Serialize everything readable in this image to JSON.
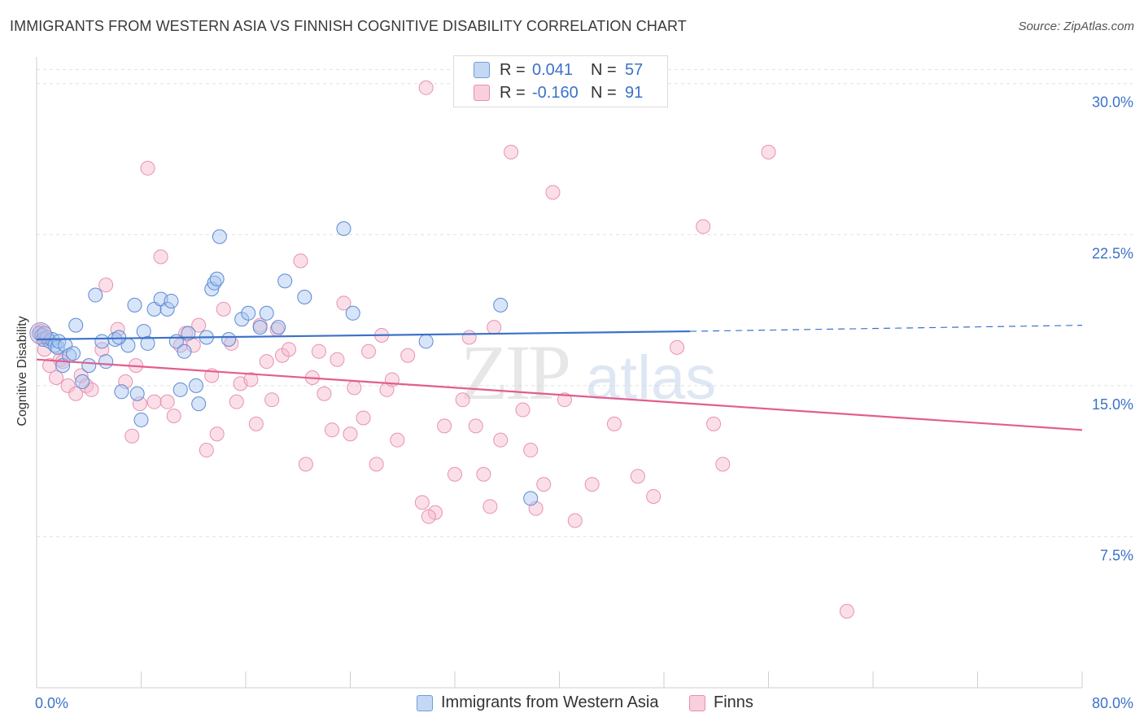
{
  "header": {
    "title": "IMMIGRANTS FROM WESTERN ASIA VS FINNISH COGNITIVE DISABILITY CORRELATION CHART",
    "source": "Source: ZipAtlas.com"
  },
  "colors": {
    "blue": "#3b72c8",
    "blue_fill": "#a9c6f0",
    "pink": "#e35d8e",
    "pink_fill": "#f6b9cd",
    "grid": "#e0e0e0",
    "tick_label": "#3b72c8"
  },
  "legend": {
    "rows": [
      {
        "r_label": "R =",
        "r_value": "0.041",
        "n_label": "N =",
        "n_value": "57"
      },
      {
        "r_label": "R =",
        "r_value": "-0.160",
        "n_label": "N =",
        "n_value": "91"
      }
    ],
    "series_names": [
      "Immigrants from Western Asia",
      "Finns"
    ]
  },
  "watermark": {
    "zip": "ZIP",
    "atlas": "atlas"
  },
  "chart_data": {
    "type": "scatter",
    "title": "IMMIGRANTS FROM WESTERN ASIA VS FINNISH COGNITIVE DISABILITY CORRELATION CHART",
    "xlabel": "",
    "ylabel": "Cognitive Disability",
    "xlim": [
      0,
      80
    ],
    "ylim": [
      0,
      31
    ],
    "x_tick_labels": [
      "0.0%",
      "80.0%"
    ],
    "y_ticks": [
      7.5,
      15.0,
      22.5,
      30.0
    ],
    "y_tick_labels": [
      "7.5%",
      "15.0%",
      "22.5%",
      "30.0%"
    ],
    "grid": true,
    "series": [
      {
        "name": "Immigrants from Western Asia",
        "r": 0.041,
        "n": 57,
        "trend": {
          "x_start": 0,
          "y_start": 17.3,
          "x_solid_end": 50,
          "y_solid_end": 17.7,
          "x_end": 80,
          "y_end": 18.0
        },
        "points": [
          [
            0.2,
            17.6
          ],
          [
            0.4,
            17.5
          ],
          [
            0.5,
            17.3
          ],
          [
            0.8,
            17.4
          ],
          [
            1.0,
            17.2
          ],
          [
            1.2,
            17.3
          ],
          [
            1.4,
            17.0
          ],
          [
            1.6,
            16.9
          ],
          [
            1.7,
            17.2
          ],
          [
            2.0,
            16.0
          ],
          [
            2.2,
            17.0
          ],
          [
            2.5,
            16.5
          ],
          [
            3.0,
            18.0
          ],
          [
            3.5,
            15.2
          ],
          [
            4.0,
            16.0
          ],
          [
            4.5,
            19.5
          ],
          [
            5.0,
            17.2
          ],
          [
            5.3,
            16.2
          ],
          [
            6.0,
            17.3
          ],
          [
            6.5,
            14.7
          ],
          [
            7.0,
            17.0
          ],
          [
            7.5,
            19.0
          ],
          [
            7.7,
            14.6
          ],
          [
            8.0,
            13.3
          ],
          [
            8.2,
            17.7
          ],
          [
            8.5,
            17.1
          ],
          [
            9.0,
            18.8
          ],
          [
            9.5,
            19.3
          ],
          [
            10.0,
            18.8
          ],
          [
            10.3,
            19.2
          ],
          [
            10.7,
            17.2
          ],
          [
            11.0,
            14.8
          ],
          [
            11.3,
            16.7
          ],
          [
            11.6,
            17.6
          ],
          [
            12.2,
            15.0
          ],
          [
            12.4,
            14.1
          ],
          [
            13.0,
            17.4
          ],
          [
            13.4,
            19.8
          ],
          [
            13.6,
            20.1
          ],
          [
            13.8,
            20.3
          ],
          [
            14.0,
            22.4
          ],
          [
            14.7,
            17.3
          ],
          [
            15.7,
            18.3
          ],
          [
            16.2,
            18.6
          ],
          [
            17.1,
            17.9
          ],
          [
            17.6,
            18.6
          ],
          [
            18.5,
            17.9
          ],
          [
            19.0,
            20.2
          ],
          [
            20.5,
            19.4
          ],
          [
            23.5,
            22.8
          ],
          [
            24.2,
            18.6
          ],
          [
            29.8,
            17.2
          ],
          [
            35.5,
            19.0
          ],
          [
            37.8,
            9.4
          ],
          [
            0.6,
            17.6
          ],
          [
            2.8,
            16.6
          ],
          [
            6.3,
            17.4
          ]
        ]
      },
      {
        "name": "Finns",
        "r": -0.16,
        "n": 91,
        "trend": {
          "x_start": 0,
          "y_start": 16.3,
          "x_end": 80,
          "y_end": 12.8
        },
        "points": [
          [
            0.3,
            17.7
          ],
          [
            0.6,
            16.8
          ],
          [
            1.0,
            16.0
          ],
          [
            1.5,
            15.4
          ],
          [
            1.8,
            16.3
          ],
          [
            2.0,
            16.2
          ],
          [
            2.4,
            15.0
          ],
          [
            3.0,
            14.6
          ],
          [
            3.4,
            15.5
          ],
          [
            3.8,
            15.0
          ],
          [
            4.2,
            14.8
          ],
          [
            5.0,
            16.8
          ],
          [
            5.3,
            20.0
          ],
          [
            6.2,
            17.8
          ],
          [
            6.8,
            15.2
          ],
          [
            7.3,
            12.5
          ],
          [
            7.6,
            16.0
          ],
          [
            7.9,
            14.1
          ],
          [
            8.5,
            25.8
          ],
          [
            9.0,
            14.2
          ],
          [
            9.5,
            21.4
          ],
          [
            10.0,
            14.2
          ],
          [
            10.5,
            13.5
          ],
          [
            11.0,
            17.0
          ],
          [
            11.4,
            17.6
          ],
          [
            12.0,
            17.0
          ],
          [
            12.4,
            18.0
          ],
          [
            13.0,
            11.8
          ],
          [
            13.4,
            15.5
          ],
          [
            13.8,
            12.6
          ],
          [
            14.3,
            18.8
          ],
          [
            14.9,
            17.1
          ],
          [
            15.3,
            14.2
          ],
          [
            15.6,
            15.1
          ],
          [
            16.4,
            15.3
          ],
          [
            16.8,
            13.1
          ],
          [
            17.1,
            18.0
          ],
          [
            17.6,
            16.2
          ],
          [
            18.0,
            14.3
          ],
          [
            18.4,
            17.8
          ],
          [
            18.8,
            16.5
          ],
          [
            19.3,
            16.8
          ],
          [
            20.2,
            21.2
          ],
          [
            20.6,
            11.1
          ],
          [
            21.1,
            15.4
          ],
          [
            21.6,
            16.7
          ],
          [
            22.0,
            14.6
          ],
          [
            22.6,
            12.8
          ],
          [
            23.0,
            16.3
          ],
          [
            23.5,
            19.1
          ],
          [
            24.0,
            12.6
          ],
          [
            24.3,
            14.9
          ],
          [
            25.0,
            13.4
          ],
          [
            25.4,
            16.7
          ],
          [
            26.0,
            11.1
          ],
          [
            26.4,
            17.5
          ],
          [
            26.8,
            14.8
          ],
          [
            27.2,
            15.3
          ],
          [
            27.6,
            12.3
          ],
          [
            28.4,
            16.5
          ],
          [
            29.5,
            9.2
          ],
          [
            29.8,
            29.8
          ],
          [
            30.5,
            8.7
          ],
          [
            31.2,
            13.0
          ],
          [
            32.0,
            10.6
          ],
          [
            32.6,
            14.3
          ],
          [
            33.1,
            17.4
          ],
          [
            33.6,
            13.0
          ],
          [
            34.2,
            10.6
          ],
          [
            34.7,
            9.0
          ],
          [
            35.5,
            12.3
          ],
          [
            36.3,
            26.6
          ],
          [
            37.2,
            13.8
          ],
          [
            37.8,
            11.8
          ],
          [
            38.2,
            8.9
          ],
          [
            38.8,
            10.1
          ],
          [
            39.5,
            24.6
          ],
          [
            40.4,
            14.3
          ],
          [
            41.2,
            8.3
          ],
          [
            42.5,
            10.1
          ],
          [
            44.2,
            13.1
          ],
          [
            47.2,
            9.5
          ],
          [
            49.0,
            16.9
          ],
          [
            51.0,
            22.9
          ],
          [
            51.8,
            13.1
          ],
          [
            52.5,
            11.1
          ],
          [
            56.0,
            26.6
          ],
          [
            62.0,
            3.8
          ],
          [
            35.0,
            17.9
          ],
          [
            46.0,
            10.5
          ],
          [
            30.0,
            8.5
          ]
        ]
      }
    ]
  }
}
